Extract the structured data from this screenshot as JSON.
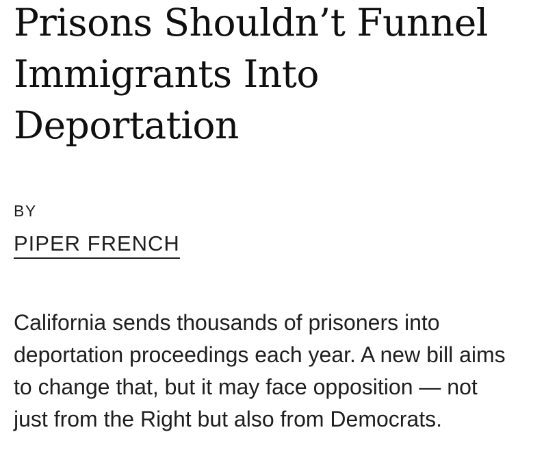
{
  "colors": {
    "background": "#ffffff",
    "headline_text": "#0f0f0f",
    "body_text": "#1e1e1e",
    "author_underline": "#1e1e1e"
  },
  "article": {
    "title": "Prisons Shouldn’t Funnel Immigrants Into Deportation",
    "title_lines": [
      "Prisons Shouldn’t Funnel",
      "Immigrants Into",
      "Deportation"
    ],
    "byline": {
      "prefix": "BY",
      "author": "PIPER FRENCH"
    },
    "dek": "California sends thousands of prisoners into deportation proceedings each year. A new bill aims to change that, but it may face opposition — not just from the Right but also from Democrats.",
    "dek_lines": [
      "California sends thousands of prisoners into",
      "deportation proceedings each year. A new bill aims",
      "to change that, but it may face opposition — not",
      "just from the Right but also from Democrats."
    ]
  }
}
